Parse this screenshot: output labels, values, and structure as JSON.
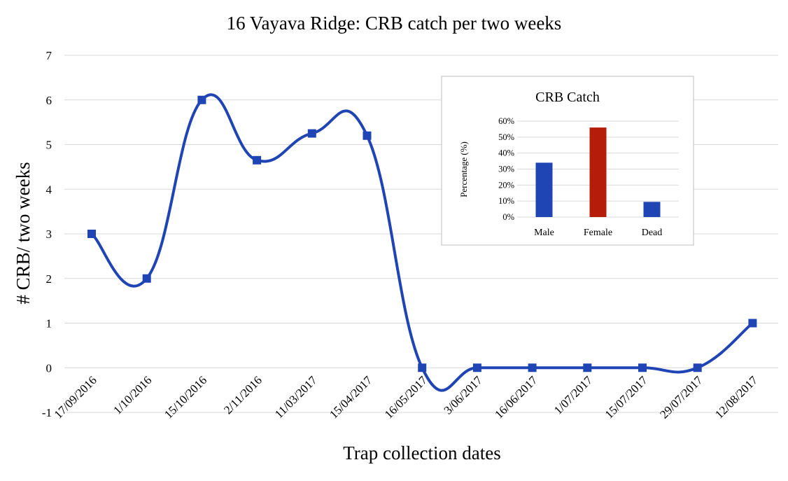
{
  "chart_data": [
    {
      "type": "line",
      "title": "16 Vayava Ridge:  CRB catch per two weeks",
      "xlabel": "Trap collection dates",
      "ylabel": "# CRB/ two weeks",
      "ylim": [
        -1,
        7
      ],
      "yticks": [
        -1,
        0,
        1,
        2,
        3,
        4,
        5,
        6,
        7
      ],
      "grid": true,
      "smooth": true,
      "categories": [
        "17/09/2016",
        "1/10/2016",
        "15/10/2016",
        "2/11/2016",
        "11/03/2017",
        "15/04/2017",
        "16/05/2017",
        "3/06/2017",
        "16/06/2017",
        "1/07/2017",
        "15/07/2017",
        "29/07/2017",
        "12/08/2017"
      ],
      "series": [
        {
          "values": [
            3,
            2,
            6,
            4.65,
            5.25,
            5.2,
            0,
            0,
            0,
            0,
            0,
            0,
            1
          ],
          "color": "#1f45b5",
          "marker": "square"
        }
      ]
    },
    {
      "type": "bar",
      "title": "CRB Catch",
      "xlabel": "",
      "ylabel": "Percentage (%)",
      "ylim": [
        0,
        0.6
      ],
      "yticks": [
        "0%",
        "10%",
        "20%",
        "30%",
        "40%",
        "50%",
        "60%"
      ],
      "grid": true,
      "categories": [
        "Male",
        "Female",
        "Dead"
      ],
      "values": [
        0.34,
        0.56,
        0.095
      ],
      "colors": [
        "#1f45b5",
        "#b51c0a",
        "#1f45b5"
      ]
    }
  ]
}
